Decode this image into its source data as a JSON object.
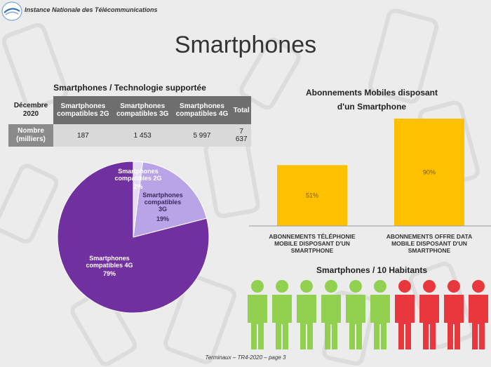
{
  "header": {
    "organization": "Instance Nationale des Télécommunications"
  },
  "page_title": "Smartphones",
  "footer": "Terminaux – TR4-2020 – page 3",
  "table": {
    "title": "Smartphones / Technologie supportée",
    "corner": "Décembre 2020",
    "columns": [
      "Smartphones compatibles 2G",
      "Smartphones compatibles 3G",
      "Smartphones compatibles 4G",
      "Total"
    ],
    "row_label": "Nombre (milliers)",
    "values": [
      "187",
      "1 453",
      "5 997",
      "7 637"
    ]
  },
  "colors": {
    "pie_4g": "#7030a0",
    "pie_3g": "#b9a4e8",
    "pie_2g": "#e6dcf7",
    "bar": "#ffc000",
    "person_green": "#92d050",
    "person_red": "#e8383d",
    "header_gray": "#6e6e6e"
  },
  "chart_data": [
    {
      "type": "pie",
      "labels": [
        "Smartphones compatibles 2G",
        "Smartphones compatibles 3G",
        "Smartphones compatibles 4G"
      ],
      "values": [
        2,
        19,
        79
      ],
      "value_labels": [
        "2%",
        "19%",
        "79%"
      ]
    },
    {
      "type": "bar",
      "title": "Abonnements Mobiles disposant d'un Smartphone",
      "categories": [
        "ABONNEMENTS TÉLÉPHONIE MOBILE DISPOSANT D'UN SMARTPHONE",
        "ABONNEMENTS OFFRE DATA MOBILE DISPOSANT D'UN SMARTPHONE"
      ],
      "values": [
        51,
        90
      ],
      "value_labels": [
        "51%",
        "90%"
      ],
      "ylim": [
        0,
        100
      ]
    },
    {
      "type": "pictograph",
      "title": "Smartphones / 10 Habitants",
      "total": 10,
      "highlighted": 6,
      "highlight_color": "#92d050",
      "rest_color": "#e8383d"
    }
  ]
}
